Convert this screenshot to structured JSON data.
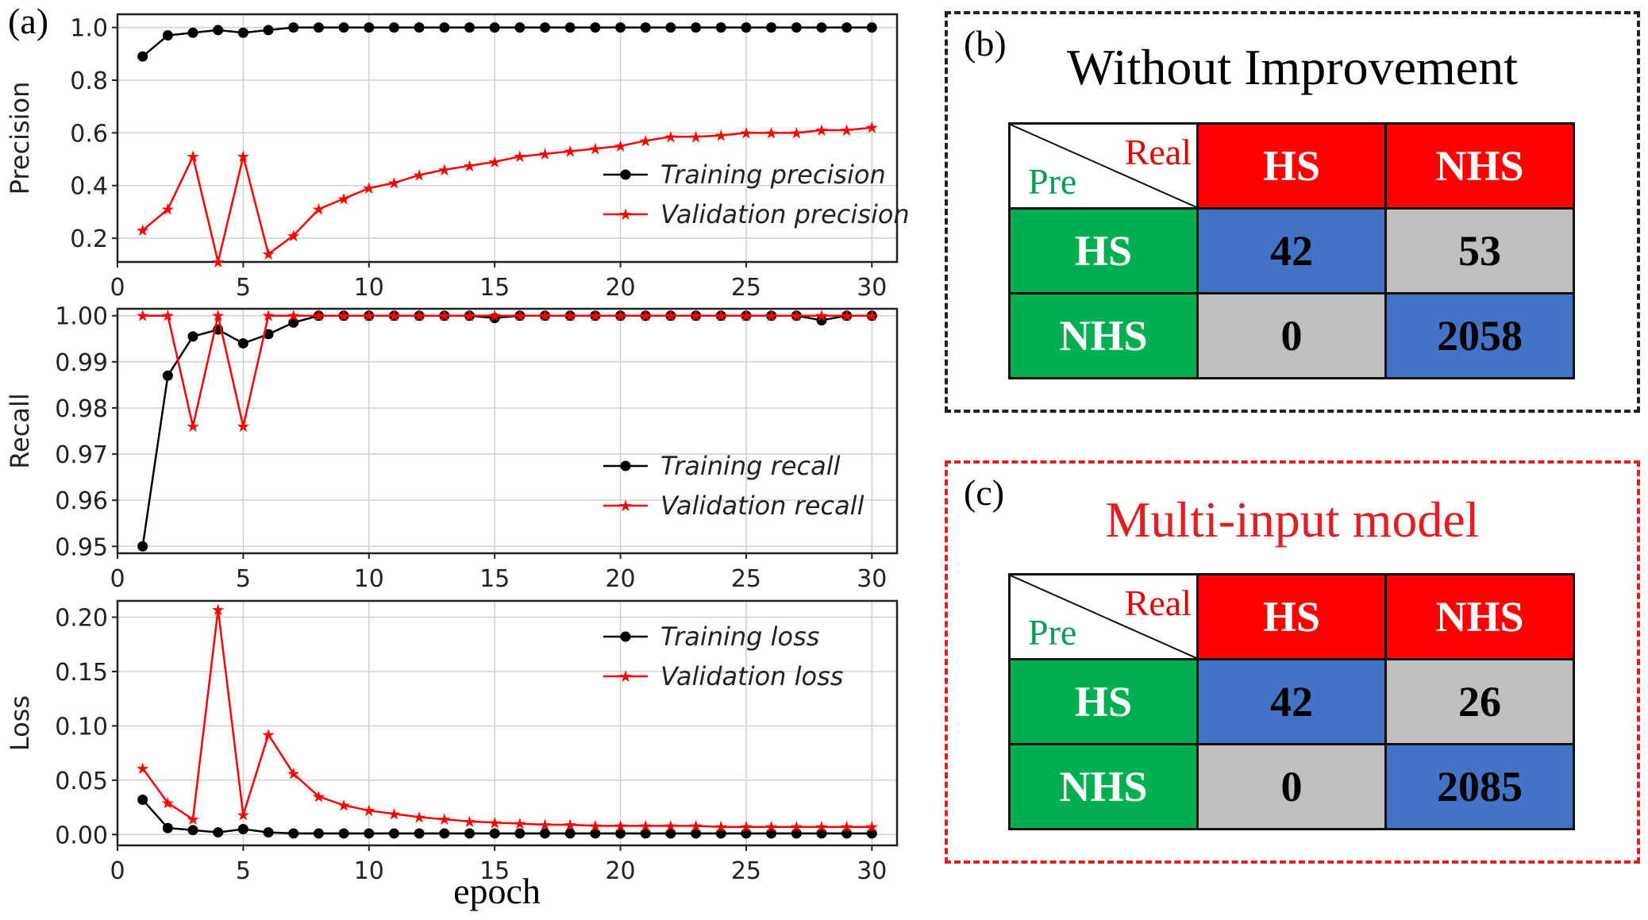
{
  "panel_a": {
    "label": "(a)",
    "xlabel": "epoch",
    "charts": [
      {
        "type": "line",
        "ylabel": "Precision",
        "xlim": [
          0,
          31
        ],
        "ylim": [
          0.11,
          1.05
        ],
        "xticks": [
          "0",
          "5",
          "10",
          "15",
          "20",
          "25",
          "30"
        ],
        "yticks": [
          "0.2",
          "0.4",
          "0.6",
          "0.8",
          "1.0"
        ],
        "x": [
          1,
          2,
          3,
          4,
          5,
          6,
          7,
          8,
          9,
          10,
          11,
          12,
          13,
          14,
          15,
          16,
          17,
          18,
          19,
          20,
          21,
          22,
          23,
          24,
          25,
          26,
          27,
          28,
          29,
          30
        ],
        "series": [
          {
            "name": "Training precision",
            "color": "#000000",
            "marker": "circle",
            "values": [
              0.89,
              0.97,
              0.98,
              0.99,
              0.98,
              0.99,
              1.0,
              1.0,
              1.0,
              1.0,
              1.0,
              1.0,
              1.0,
              1.0,
              1.0,
              1.0,
              1.0,
              1.0,
              1.0,
              1.0,
              1.0,
              1.0,
              1.0,
              1.0,
              1.0,
              1.0,
              1.0,
              1.0,
              1.0,
              1.0
            ]
          },
          {
            "name": "Validation precision",
            "color": "#ff0000",
            "marker": "star",
            "values": [
              0.23,
              0.31,
              0.51,
              0.11,
              0.51,
              0.14,
              0.21,
              0.31,
              0.35,
              0.39,
              0.41,
              0.44,
              0.46,
              0.475,
              0.49,
              0.51,
              0.52,
              0.53,
              0.54,
              0.55,
              0.57,
              0.585,
              0.585,
              0.59,
              0.6,
              0.6,
              0.6,
              0.61,
              0.61,
              0.62
            ]
          }
        ],
        "legend": "lower-right"
      },
      {
        "type": "line",
        "ylabel": "Recall",
        "xlim": [
          0,
          31
        ],
        "ylim": [
          0.9485,
          1.0015
        ],
        "xticks": [
          "0",
          "5",
          "10",
          "15",
          "20",
          "25",
          "30"
        ],
        "yticks": [
          "0.95",
          "0.96",
          "0.97",
          "0.98",
          "0.99",
          "1.00"
        ],
        "x": [
          1,
          2,
          3,
          4,
          5,
          6,
          7,
          8,
          9,
          10,
          11,
          12,
          13,
          14,
          15,
          16,
          17,
          18,
          19,
          20,
          21,
          22,
          23,
          24,
          25,
          26,
          27,
          28,
          29,
          30
        ],
        "series": [
          {
            "name": "Training recall",
            "color": "#000000",
            "marker": "circle",
            "values": [
              0.95,
              0.987,
              0.9955,
              0.997,
              0.994,
              0.996,
              0.9985,
              1.0,
              1.0,
              1.0,
              1.0,
              1.0,
              1.0,
              1.0,
              0.9995,
              1.0,
              1.0,
              1.0,
              1.0,
              1.0,
              1.0,
              1.0,
              1.0,
              1.0,
              1.0,
              1.0,
              1.0,
              0.999,
              1.0,
              1.0
            ]
          },
          {
            "name": "Validation recall",
            "color": "#ff0000",
            "marker": "star",
            "values": [
              1.0,
              1.0,
              0.976,
              1.0,
              0.976,
              1.0,
              1.0,
              1.0,
              1.0,
              1.0,
              1.0,
              1.0,
              1.0,
              1.0,
              1.0,
              1.0,
              1.0,
              1.0,
              1.0,
              1.0,
              1.0,
              1.0,
              1.0,
              1.0,
              1.0,
              1.0,
              1.0,
              1.0,
              1.0,
              1.0
            ]
          }
        ],
        "legend": "lower-right"
      },
      {
        "type": "line",
        "ylabel": "Loss",
        "xlim": [
          0,
          31
        ],
        "ylim": [
          -0.01,
          0.215
        ],
        "xticks": [
          "0",
          "5",
          "10",
          "15",
          "20",
          "25",
          "30"
        ],
        "yticks": [
          "0.00",
          "0.05",
          "0.10",
          "0.15",
          "0.20"
        ],
        "x": [
          1,
          2,
          3,
          4,
          5,
          6,
          7,
          8,
          9,
          10,
          11,
          12,
          13,
          14,
          15,
          16,
          17,
          18,
          19,
          20,
          21,
          22,
          23,
          24,
          25,
          26,
          27,
          28,
          29,
          30
        ],
        "series": [
          {
            "name": "Training loss",
            "color": "#000000",
            "marker": "circle",
            "values": [
              0.032,
              0.006,
              0.004,
              0.002,
              0.005,
              0.002,
              0.001,
              0.001,
              0.001,
              0.001,
              0.001,
              0.001,
              0.001,
              0.001,
              0.001,
              0.001,
              0.001,
              0.001,
              0.001,
              0.001,
              0.001,
              0.001,
              0.001,
              0.001,
              0.001,
              0.001,
              0.001,
              0.001,
              0.001,
              0.001
            ]
          },
          {
            "name": "Validation loss",
            "color": "#ff0000",
            "marker": "star",
            "values": [
              0.061,
              0.029,
              0.014,
              0.207,
              0.018,
              0.092,
              0.056,
              0.035,
              0.027,
              0.022,
              0.019,
              0.016,
              0.014,
              0.012,
              0.011,
              0.01,
              0.009,
              0.009,
              0.008,
              0.008,
              0.008,
              0.008,
              0.008,
              0.007,
              0.007,
              0.007,
              0.007,
              0.007,
              0.007,
              0.007
            ]
          }
        ],
        "legend": "upper-right"
      }
    ]
  },
  "panel_b": {
    "label": "(b)",
    "title": "Without Improvement",
    "border_color": "#222222",
    "title_color": "#000000",
    "corner_real": "Real",
    "corner_pre": "Pre",
    "col_headers": [
      "HS",
      "NHS"
    ],
    "row_headers": [
      "HS",
      "NHS"
    ],
    "cells": [
      [
        "42",
        "53"
      ],
      [
        "0",
        "2058"
      ]
    ]
  },
  "panel_c": {
    "label": "(c)",
    "title": "Multi-input model",
    "border_color": "#e02020",
    "title_color": "#e02020",
    "corner_real": "Real",
    "corner_pre": "Pre",
    "col_headers": [
      "HS",
      "NHS"
    ],
    "row_headers": [
      "HS",
      "NHS"
    ],
    "cells": [
      [
        "42",
        "26"
      ],
      [
        "0",
        "2085"
      ]
    ]
  }
}
